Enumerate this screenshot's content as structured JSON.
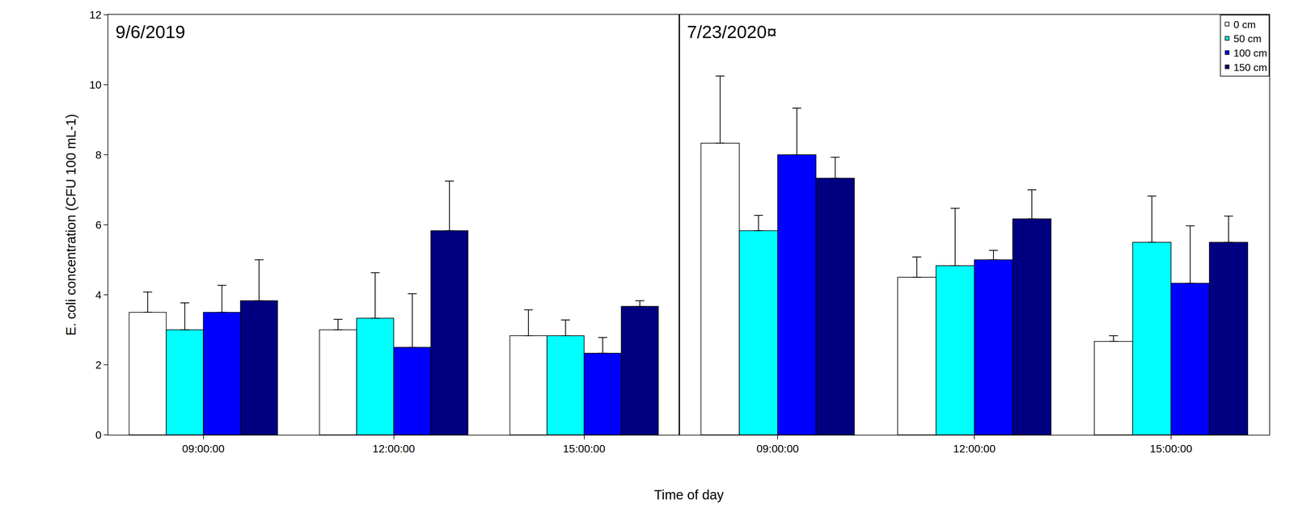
{
  "chart_data": {
    "type": "bar",
    "x_label": "Time of day",
    "y_label": "E. coli concentration (CFU 100 mL-1)",
    "ylim": [
      0,
      12
    ],
    "yticks": [
      0,
      2,
      4,
      6,
      8,
      10,
      12
    ],
    "legend": "top right",
    "grid": false,
    "series": [
      {
        "name": "0 cm",
        "color": "#ffffff"
      },
      {
        "name": "50 cm",
        "color": "#00ffff"
      },
      {
        "name": "100 cm",
        "color": "#0000ff"
      },
      {
        "name": "150 cm",
        "color": "#000080"
      }
    ],
    "panels": [
      {
        "title": "9/6/2019",
        "categories": [
          "09:00:00",
          "12:00:00",
          "15:00:00"
        ],
        "series": [
          {
            "values": [
              3.5,
              3.0,
              2.83
            ],
            "error": [
              0.58,
              0.3,
              0.74
            ]
          },
          {
            "values": [
              3.0,
              3.33,
              2.83
            ],
            "error": [
              0.77,
              1.3,
              0.45
            ]
          },
          {
            "values": [
              3.5,
              2.5,
              2.33
            ],
            "error": [
              0.77,
              1.53,
              0.45
            ]
          },
          {
            "values": [
              3.83,
              5.83,
              3.67
            ],
            "error": [
              1.17,
              1.42,
              0.16
            ]
          }
        ]
      },
      {
        "title": "7/23/2020¤",
        "categories": [
          "09:00:00",
          "12:00:00",
          "15:00:00"
        ],
        "series": [
          {
            "values": [
              8.33,
              4.5,
              2.67
            ],
            "error": [
              1.92,
              0.58,
              0.16
            ]
          },
          {
            "values": [
              5.83,
              4.83,
              5.5
            ],
            "error": [
              0.44,
              1.64,
              1.32
            ]
          },
          {
            "values": [
              8.0,
              5.0,
              4.33
            ],
            "error": [
              1.33,
              0.27,
              1.64
            ]
          },
          {
            "values": [
              7.33,
              6.17,
              5.5
            ],
            "error": [
              0.6,
              0.83,
              0.75
            ]
          }
        ]
      }
    ]
  }
}
